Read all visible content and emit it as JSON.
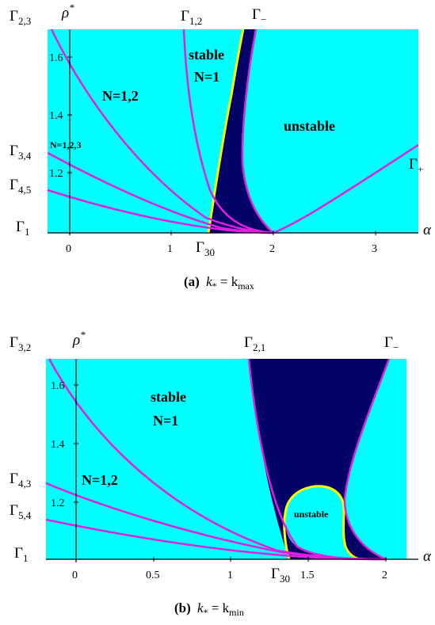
{
  "panel_a": {
    "caption_tag": "(a)",
    "caption_math": "k",
    "caption_sub": "*",
    "caption_eq": " = k",
    "caption_sub2": "max",
    "labels": {
      "G23": "Γ",
      "G23_sub": "2,3",
      "rho": "ρ",
      "rho_sup": "*",
      "G12": "Γ",
      "G12_sub": "1,2",
      "Gminus": "Γ",
      "Gminus_sub": "−",
      "G34": "Γ",
      "G34_sub": "3,4",
      "G45": "Γ",
      "G45_sub": "4,5",
      "G1": "Γ",
      "G1_sub": "1",
      "G30": "Γ",
      "G30_sub": "30",
      "Gplus": "Γ",
      "Gplus_sub": "+",
      "alpha": "α"
    },
    "regions": {
      "stable": "stable",
      "N1": "N=1",
      "N12": "N=1,2",
      "N123": "N=1,2,3",
      "unstable": "unstable"
    },
    "ticks_y": [
      "1.6",
      "1.4",
      "1.2"
    ],
    "ticks_x": [
      "0",
      "1",
      "2",
      "3"
    ]
  },
  "panel_b": {
    "caption_tag": "(b)",
    "caption_math": "k",
    "caption_sub": "*",
    "caption_eq": " = k",
    "caption_sub2": "min",
    "labels": {
      "G32": "Γ",
      "G32_sub": "3,2",
      "rho": "ρ",
      "rho_sup": "*",
      "G21": "Γ",
      "G21_sub": "2,1",
      "Gminus": "Γ",
      "Gminus_sub": "−",
      "G43": "Γ",
      "G43_sub": "4,3",
      "G54": "Γ",
      "G54_sub": "5,4",
      "G1": "Γ",
      "G1_sub": "1",
      "G30": "Γ",
      "G30_sub": "30",
      "alpha": "α"
    },
    "regions": {
      "stable": "stable",
      "N1": "N=1",
      "N12": "N=1,2",
      "unstable": "unstable"
    },
    "ticks_y": [
      "1.6",
      "1.4",
      "1.2"
    ],
    "ticks_x": [
      "0",
      "0.5",
      "1",
      "1.5",
      "2"
    ]
  },
  "colors": {
    "stable_fill": "#00ffff",
    "unstable_fill": "#000066",
    "curve": "#e020e0",
    "boundary": "#ffff00"
  }
}
